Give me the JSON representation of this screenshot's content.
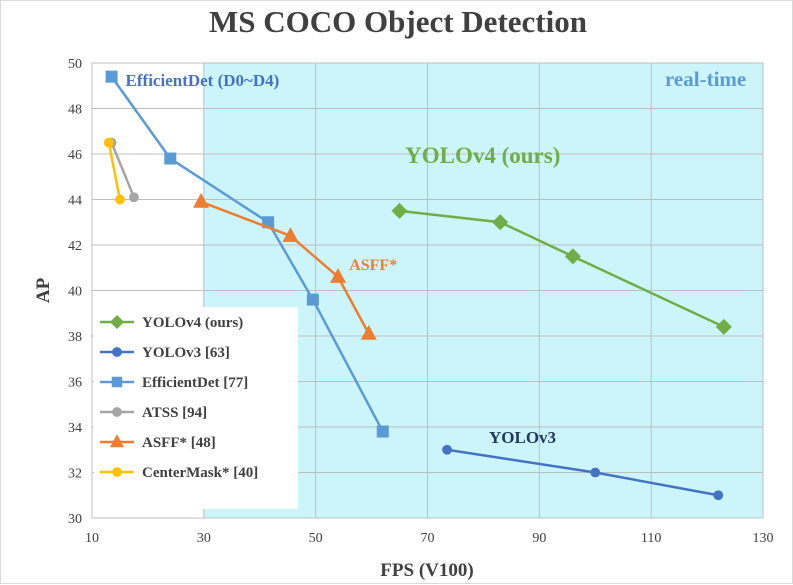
{
  "chart_data": {
    "type": "line",
    "title": "MS COCO Object Detection",
    "xlabel": "FPS (V100)",
    "ylabel": "AP",
    "xlim": [
      10,
      130
    ],
    "ylim": [
      30,
      50
    ],
    "xticks": [
      10,
      30,
      50,
      70,
      90,
      110,
      130
    ],
    "yticks": [
      30,
      32,
      34,
      36,
      38,
      40,
      42,
      44,
      46,
      48,
      50
    ],
    "grid": true,
    "realtime_region": {
      "x_from": 30,
      "x_to": 130,
      "label": "real-time",
      "color": "#ccf5fb"
    },
    "colors": {
      "text": "#404040",
      "grid": "#bfbfbf"
    },
    "series": [
      {
        "name": "YOLOv4 (ours)",
        "color": "#70ad47",
        "marker": "diamond",
        "x": [
          65,
          83,
          96,
          123
        ],
        "y": [
          43.5,
          43.0,
          41.5,
          38.4
        ]
      },
      {
        "name": "YOLOv3 [63]",
        "color": "#4472c4",
        "marker": "circle",
        "x": [
          73.5,
          100,
          122
        ],
        "y": [
          33.0,
          32.0,
          31.0
        ]
      },
      {
        "name": "EfficientDet [77]",
        "color": "#5b9bd5",
        "marker": "square",
        "x": [
          13.5,
          24,
          41.5,
          49.5,
          62
        ],
        "y": [
          49.4,
          45.8,
          43.0,
          39.6,
          33.8
        ]
      },
      {
        "name": "ATSS [94]",
        "color": "#a5a5a5",
        "marker": "circle",
        "x": [
          13.5,
          17.5
        ],
        "y": [
          46.5,
          44.1
        ]
      },
      {
        "name": "ASFF* [48]",
        "color": "#ed7d31",
        "marker": "triangle",
        "x": [
          29.5,
          45.5,
          54,
          59.5
        ],
        "y": [
          43.9,
          42.4,
          40.6,
          38.1
        ]
      },
      {
        "name": "CenterMask* [40]",
        "color": "#ffc000",
        "marker": "circle",
        "x": [
          13,
          15
        ],
        "y": [
          46.5,
          44.0
        ]
      }
    ],
    "annotations": [
      {
        "text": "EfficientDet (D0~D4)",
        "color": "#4472c4",
        "x": 16,
        "y": 49.0,
        "size": 17,
        "anchor": "start"
      },
      {
        "text": "real-time",
        "color": "#5b9bd5",
        "x": 127,
        "y": 49.0,
        "size": 21,
        "anchor": "end"
      },
      {
        "text": "YOLOv4 (ours)",
        "color": "#70ad47",
        "x": 66,
        "y": 45.6,
        "size": 23,
        "anchor": "start"
      },
      {
        "text": "ASFF*",
        "color": "#ed7d31",
        "x": 56,
        "y": 40.9,
        "size": 16,
        "anchor": "start"
      },
      {
        "text": "YOLOv3",
        "color": "#1f3864",
        "x": 81,
        "y": 33.3,
        "size": 17,
        "anchor": "start"
      }
    ],
    "legend_position": "bottom-left"
  }
}
